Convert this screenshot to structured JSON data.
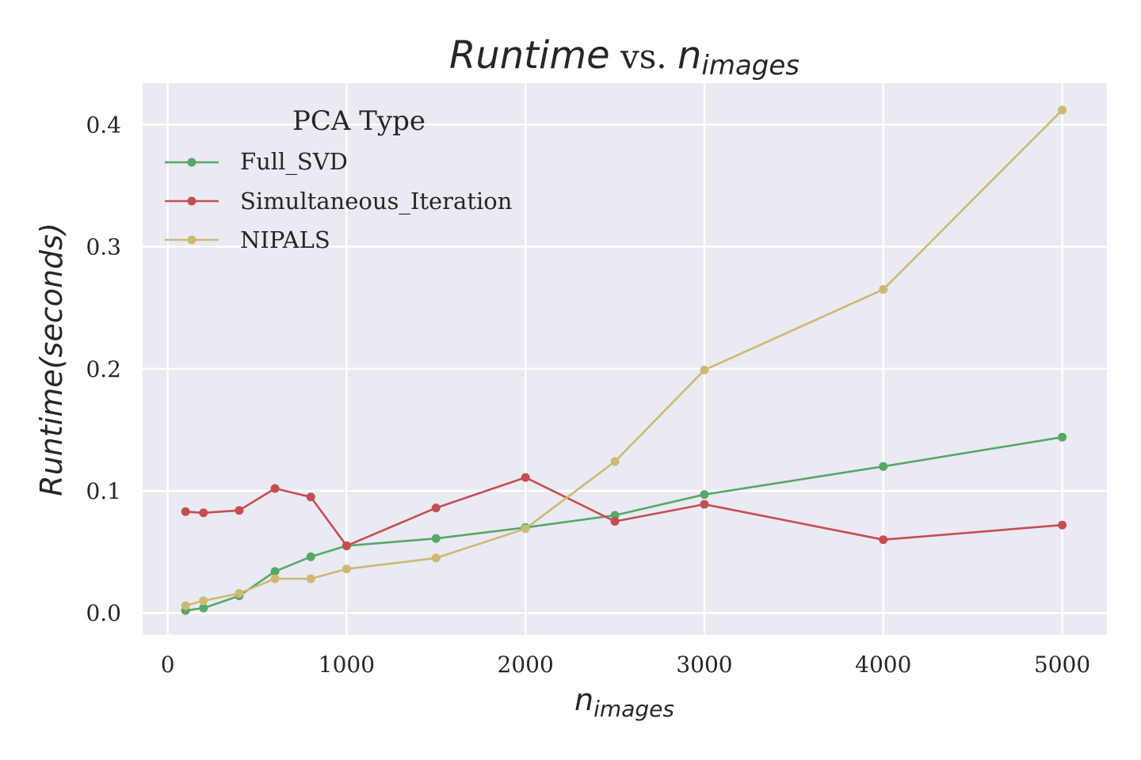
{
  "chart_data": {
    "type": "line",
    "title": {
      "italic_part": "Runtime",
      "plain_part": " vs. ",
      "math_base": "n",
      "math_sub": "images"
    },
    "xlabel": {
      "math_base": "n",
      "math_sub": "images"
    },
    "ylabel": "Runtime(seconds)",
    "xlim": [
      -140,
      5250
    ],
    "ylim": [
      -0.018,
      0.434
    ],
    "xticks": [
      0,
      1000,
      2000,
      3000,
      4000,
      5000
    ],
    "xtick_labels": [
      "0",
      "1000",
      "2000",
      "3000",
      "4000",
      "5000"
    ],
    "yticks": [
      0.0,
      0.1,
      0.2,
      0.3,
      0.4
    ],
    "ytick_labels": [
      "0.0",
      "0.1",
      "0.2",
      "0.3",
      "0.4"
    ],
    "grid": true,
    "legend": {
      "title": "PCA Type",
      "placement": "upper-left"
    },
    "x": [
      100,
      200,
      400,
      600,
      800,
      1000,
      1500,
      2000,
      2500,
      3000,
      4000,
      5000
    ],
    "series": [
      {
        "name": "Full_SVD",
        "color": "#55a868",
        "values": [
          0.002,
          0.004,
          0.014,
          0.034,
          0.046,
          0.055,
          0.061,
          0.07,
          0.08,
          0.097,
          0.12,
          0.144
        ]
      },
      {
        "name": "Simultaneous_Iteration",
        "color": "#c44e52",
        "values": [
          0.083,
          0.082,
          0.084,
          0.102,
          0.095,
          0.055,
          0.086,
          0.111,
          0.075,
          0.089,
          0.06,
          0.072
        ]
      },
      {
        "name": "NIPALS",
        "color": "#ccb974",
        "values": [
          0.006,
          0.01,
          0.016,
          0.028,
          0.028,
          0.036,
          0.045,
          0.069,
          0.124,
          0.199,
          0.265,
          0.412
        ]
      }
    ]
  },
  "style": {
    "axes_background": "#eaeaf2",
    "grid_color": "#ffffff",
    "text_color": "#262626"
  }
}
